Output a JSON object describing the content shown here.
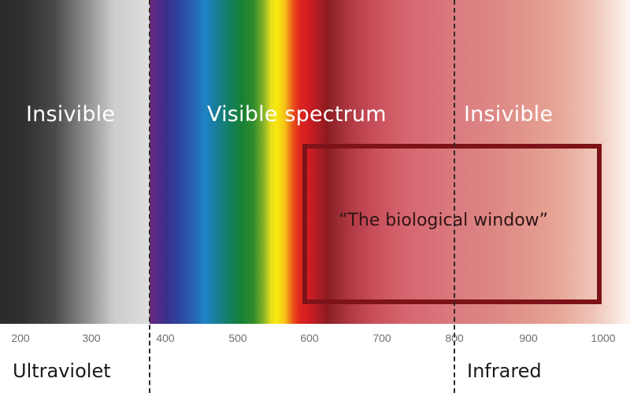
{
  "labels": {
    "insivible_left": "Insivible",
    "visible_spectrum": "Visible spectrum",
    "insivible_right": "Insivible",
    "biological_window": "“The biological window”",
    "ultraviolet": "Ultraviolet",
    "infrared": "Infrared"
  },
  "axis": {
    "unit_values": [
      "200",
      "300",
      "400",
      "500",
      "600",
      "700",
      "800",
      "900",
      "1000"
    ],
    "min": 200,
    "max": 1000
  },
  "boundaries": {
    "uv_visible": 380,
    "visible_ir": 800
  },
  "biological_window_range": [
    600,
    1000
  ],
  "colors": {
    "window_border": "#7d1318",
    "dash": "#2a2a2a",
    "tick_text": "#6f6f6f"
  }
}
